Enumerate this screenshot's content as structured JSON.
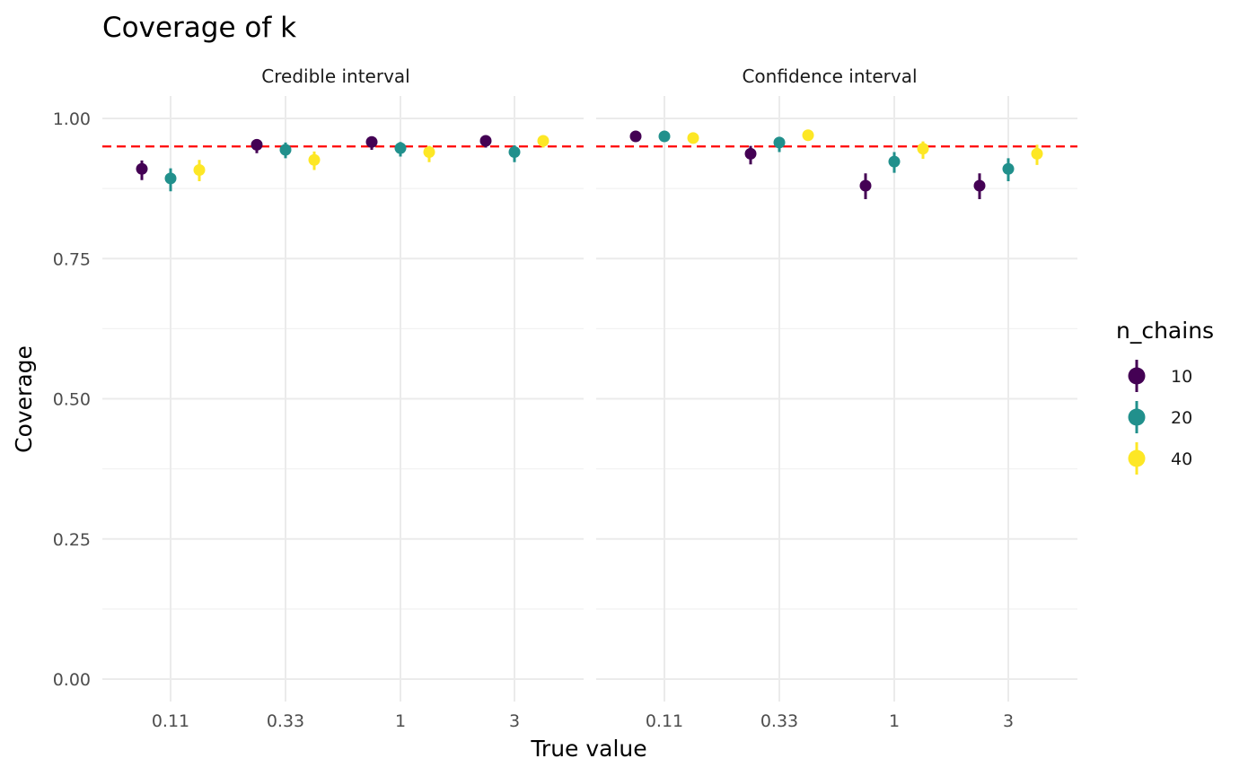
{
  "chart_data": {
    "type": "scatter",
    "title": "Coverage of k",
    "xlabel": "True value",
    "ylabel": "Coverage",
    "x_categories": [
      "0.11",
      "0.33",
      "1",
      "3"
    ],
    "ylim": [
      -0.04,
      1.04
    ],
    "y_ticks": [
      0.0,
      0.25,
      0.5,
      0.75,
      1.0
    ],
    "y_tick_labels": [
      "0.00",
      "0.25",
      "0.50",
      "0.75",
      "1.00"
    ],
    "reference_line": 0.95,
    "grid": true,
    "legend": {
      "title": "n_chains",
      "placement": "right",
      "entries": [
        {
          "label": "10",
          "color": "#440154"
        },
        {
          "label": "20",
          "color": "#21908C"
        },
        {
          "label": "40",
          "color": "#FDE725"
        }
      ]
    },
    "facets": [
      {
        "label": "Credible interval",
        "series": [
          {
            "name": "10",
            "color": "#440154",
            "y": [
              0.91,
              0.953,
              0.958,
              0.96
            ],
            "lower": [
              0.89,
              0.938,
              0.944,
              0.948
            ],
            "upper": [
              0.925,
              0.963,
              0.966,
              0.967
            ]
          },
          {
            "name": "20",
            "color": "#21908C",
            "y": [
              0.893,
              0.944,
              0.947,
              0.94
            ],
            "lower": [
              0.87,
              0.929,
              0.932,
              0.922
            ],
            "upper": [
              0.911,
              0.957,
              0.958,
              0.952
            ]
          },
          {
            "name": "40",
            "color": "#FDE725",
            "y": [
              0.908,
              0.926,
              0.94,
              0.96
            ],
            "lower": [
              0.888,
              0.908,
              0.922,
              0.948
            ],
            "upper": [
              0.926,
              0.941,
              0.951,
              0.967
            ]
          }
        ]
      },
      {
        "label": "Confidence interval",
        "series": [
          {
            "name": "10",
            "color": "#440154",
            "y": [
              0.968,
              0.937,
              0.88,
              0.88
            ],
            "lower": [
              0.96,
              0.918,
              0.856,
              0.856
            ],
            "upper": [
              0.974,
              0.951,
              0.902,
              0.902
            ]
          },
          {
            "name": "20",
            "color": "#21908C",
            "y": [
              0.968,
              0.957,
              0.923,
              0.91
            ],
            "lower": [
              0.96,
              0.94,
              0.903,
              0.888
            ],
            "upper": [
              0.974,
              0.967,
              0.94,
              0.929
            ]
          },
          {
            "name": "40",
            "color": "#FDE725",
            "y": [
              0.965,
              0.97,
              0.946,
              0.937
            ],
            "lower": [
              0.957,
              0.96,
              0.928,
              0.917
            ],
            "upper": [
              0.971,
              0.977,
              0.959,
              0.953
            ]
          }
        ]
      }
    ]
  }
}
